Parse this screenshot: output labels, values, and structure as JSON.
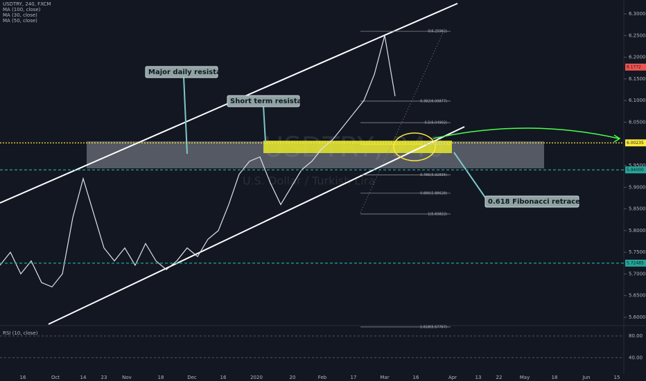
{
  "chart_data": {
    "type": "line",
    "title": "USDTRY, 240, FXCM",
    "subtitle": "U.S. Dollar / Turkish Lira",
    "watermark": "USDTRY, 240",
    "indicators": [
      "MA (100, close)",
      "MA (30, close)",
      "MA (50, close)"
    ],
    "series": [
      {
        "name": "USDTRY",
        "color": "#e0e3eb",
        "values": [
          5.72,
          5.75,
          5.7,
          5.73,
          5.68,
          5.67,
          5.7,
          5.83,
          5.92,
          5.84,
          5.76,
          5.73,
          5.76,
          5.72,
          5.77,
          5.73,
          5.71,
          5.73,
          5.76,
          5.74,
          5.78,
          5.8,
          5.86,
          5.93,
          5.96,
          5.97,
          5.91,
          5.86,
          5.9,
          5.94,
          5.96,
          5.99,
          6.01,
          6.04,
          6.07,
          6.1,
          6.16,
          6.25,
          6.11
        ]
      }
    ],
    "ylim": [
      5.584,
      6.332
    ],
    "yticks": [
      {
        "value": 5.6,
        "label": "5.60000"
      },
      {
        "value": 5.65,
        "label": "5.65000"
      },
      {
        "value": 5.7,
        "label": "5.70000"
      },
      {
        "value": 5.75,
        "label": "5.75000"
      },
      {
        "value": 5.8,
        "label": "5.80000"
      },
      {
        "value": 5.85,
        "label": "5.85000"
      },
      {
        "value": 5.9,
        "label": "5.90000"
      },
      {
        "value": 5.95,
        "label": "5.95000"
      },
      {
        "value": 6.05,
        "label": "6.05000"
      },
      {
        "value": 6.1,
        "label": "6.10000"
      },
      {
        "value": 6.15,
        "label": "6.15000"
      },
      {
        "value": 6.2,
        "label": "6.20000"
      },
      {
        "value": 6.25,
        "label": "6.25000"
      },
      {
        "value": 6.3,
        "label": "6.30000"
      }
    ],
    "x_labels": [
      "16",
      "Oct",
      "14",
      "23",
      "Nov",
      "18",
      "Dec",
      "16",
      "2020",
      "20",
      "Feb",
      "17",
      "Mar",
      "16",
      "Apr",
      "13",
      "22",
      "May",
      "18",
      "Jun",
      "15"
    ],
    "fib_levels": [
      {
        "value": 6.25982,
        "label": "0(6.25982)"
      },
      {
        "value": 6.09877,
        "label": "0.382(6.09877)"
      },
      {
        "value": 6.04902,
        "label": "0.5(6.04902)"
      },
      {
        "value": 5.9992,
        "label": "0.618(5.9992)"
      },
      {
        "value": 5.92835,
        "label": "0.786(5.92835)"
      },
      {
        "value": 5.88628,
        "label": "0.886(5.88628)"
      },
      {
        "value": 5.83822,
        "label": "1(5.83822)"
      },
      {
        "value": 5.57767,
        "label": "1.618(5.57767)"
      }
    ],
    "price_tags": [
      {
        "value": 6.00235,
        "label": "6.00235",
        "color": "#ffeb3b"
      },
      {
        "value": 5.94,
        "label": "5.94000",
        "color": "#26a69a"
      },
      {
        "value": 5.72485,
        "label": "5.72485",
        "color": "#26a69a"
      },
      {
        "value": 6.1772,
        "label": "6.1772",
        "color": "#ef5350"
      }
    ],
    "annotations": [
      "Major daily resistance",
      "Short term resistance",
      "0.618 Fibonacci retracement"
    ],
    "rsi": {
      "title": "RSI (10, close)",
      "ylim": [
        10,
        99
      ],
      "yticks": [
        {
          "value": 80,
          "label": "80.00"
        },
        {
          "value": 40,
          "label": "40.00"
        }
      ]
    }
  }
}
